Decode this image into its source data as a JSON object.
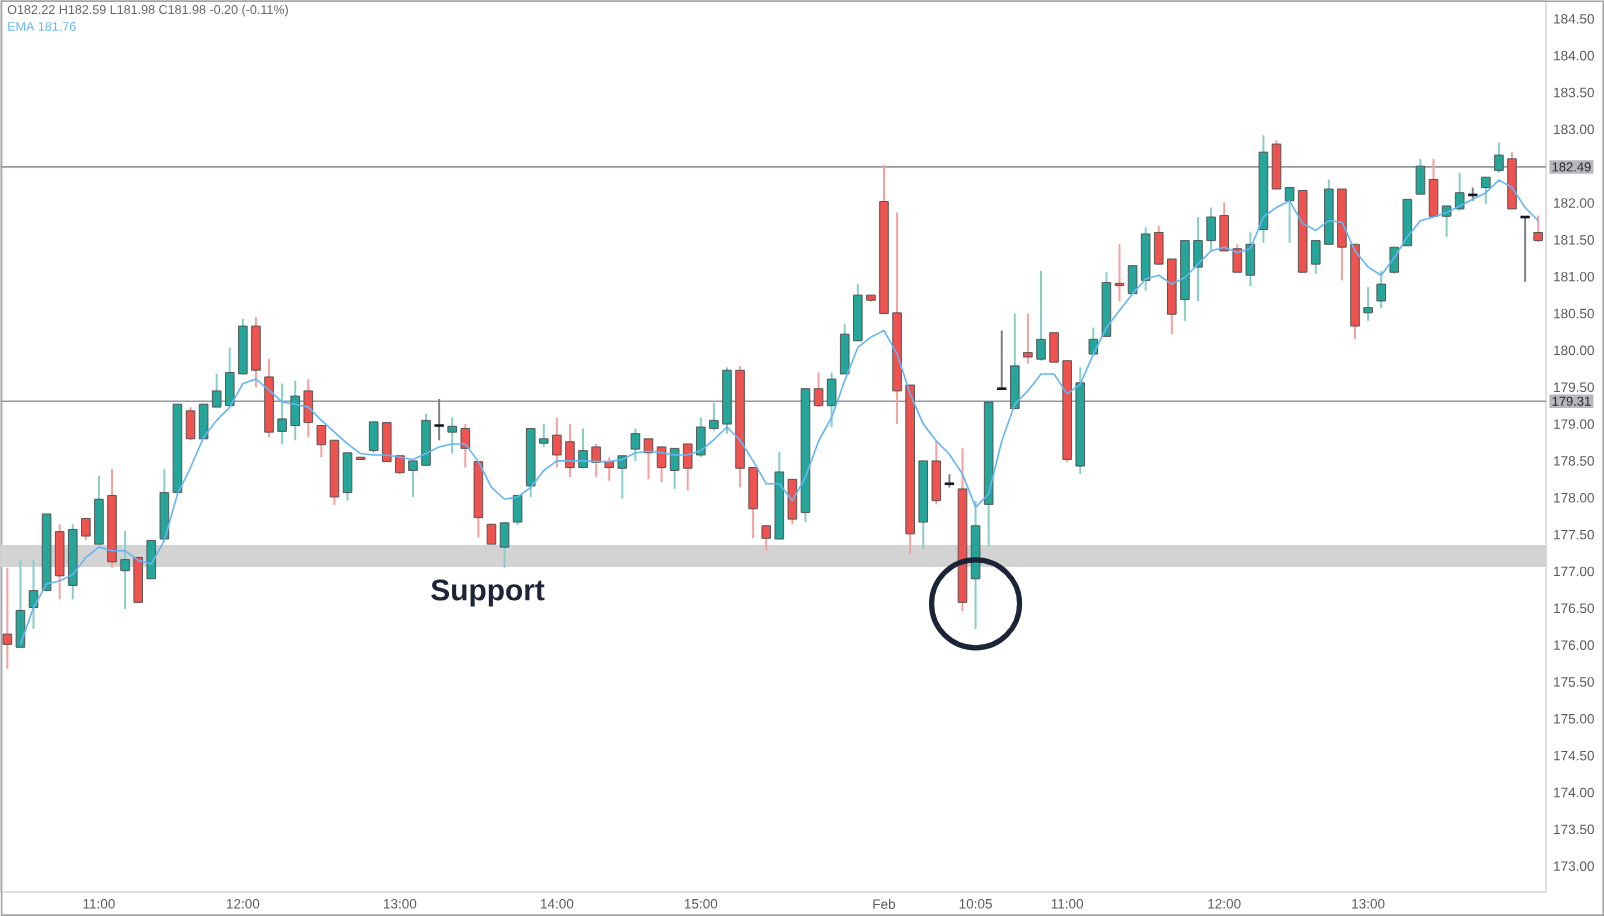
{
  "chart_data": {
    "type": "candlestick",
    "annotations": [
      "O182.22 H182.59 L181.98 C181.98 -0.20 (-0.11%)",
      "181.76"
    ],
    "legend": "top left",
    "colors": [
      "#ef5350",
      "#26a69a",
      "#26a69a",
      "#26a69a",
      "#ef5350",
      "#26a69a",
      "#ef5350",
      "#26a69a",
      "#ef5350",
      "#26a69a",
      "#ef5350",
      "#26a69a",
      "#26a69a",
      "#26a69a",
      "#ef5350",
      "#26a69a",
      "#26a69a",
      "#26a69a",
      "#26a69a",
      "#ef5350",
      "#ef5350",
      "#26a69a",
      "#26a69a",
      "#ef5350",
      "#ef5350",
      "#ef5350",
      "#26a69a",
      "#ef5350",
      "#26a69a",
      "#ef5350",
      "#ef5350",
      "#26a69a",
      "#26a69a",
      "#131722",
      "#26a69a",
      "#ef5350",
      "#ef5350",
      "#ef5350",
      "#26a69a",
      "#26a69a",
      "#26a69a",
      "#26a69a",
      "#ef5350",
      "#ef5350",
      "#26a69a",
      "#ef5350",
      "#ef5350",
      "#26a69a",
      "#26a69a",
      "#ef5350",
      "#ef5350",
      "#26a69a",
      "#ef5350",
      "#26a69a",
      "#26a69a",
      "#26a69a",
      "#ef5350",
      "#ef5350",
      "#ef5350",
      "#26a69a",
      "#ef5350",
      "#26a69a",
      "#ef5350",
      "#26a69a",
      "#26a69a",
      "#26a69a",
      "#ef5350",
      "#ef5350",
      "#ef5350",
      "#ef5350",
      "#26a69a",
      "#ef5350",
      "#131722",
      "#ef5350",
      "#26a69a",
      "#26a69a",
      "#131722",
      "#26a69a",
      "#ef5350",
      "#26a69a",
      "#ef5350",
      "#ef5350",
      "#26a69a",
      "#26a69a",
      "#26a69a",
      "#ef5350",
      "#26a69a",
      "#26a69a",
      "#ef5350",
      "#ef5350",
      "#26a69a",
      "#26a69a",
      "#26a69a",
      "#ef5350",
      "#ef5350",
      "#26a69a",
      "#26a69a",
      "#ef5350",
      "#26a69a",
      "#ef5350",
      "#26a69a",
      "#26a69a",
      "#ef5350",
      "#ef5350",
      "#26a69a",
      "#26a69a",
      "#26a69a",
      "#26a69a",
      "#26a69a",
      "#ef5350",
      "#26a69a",
      "#26a69a",
      "#131722",
      "#26a69a",
      "#26a69a",
      "#ef5350",
      "#131722",
      "#ef5350"
    ],
    "categories": [
      null,
      null,
      null,
      null,
      null,
      null,
      null,
      "11:00",
      null,
      null,
      null,
      null,
      null,
      null,
      null,
      null,
      null,
      null,
      "12:00",
      null,
      null,
      null,
      null,
      null,
      null,
      null,
      null,
      null,
      null,
      null,
      "13:00",
      null,
      null,
      null,
      null,
      null,
      null,
      null,
      null,
      null,
      null,
      null,
      "14:00",
      null,
      null,
      null,
      null,
      null,
      null,
      null,
      null,
      null,
      null,
      "15:00",
      null,
      null,
      null,
      null,
      null,
      null,
      null,
      null,
      null,
      null,
      null,
      null,
      null,
      "Feb",
      null,
      null,
      null,
      null,
      null,
      null,
      "10:05",
      null,
      null,
      null,
      null,
      null,
      null,
      "11:00",
      null,
      null,
      null,
      null,
      null,
      null,
      null,
      null,
      null,
      null,
      null,
      "12:00",
      null,
      null,
      null,
      null,
      null,
      null,
      null,
      null,
      null,
      null,
      "13:00",
      null,
      null,
      null,
      null,
      null,
      null,
      null,
      null,
      null,
      null,
      null,
      null,
      null
    ],
    "ohlc": [
      [
        176.15,
        177.05,
        175.68,
        176.01
      ],
      [
        175.97,
        177.15,
        175.97,
        176.47
      ],
      [
        176.51,
        177.15,
        176.22,
        176.74
      ],
      [
        176.74,
        177.78,
        176.74,
        177.78
      ],
      [
        177.54,
        177.64,
        176.62,
        176.94
      ],
      [
        176.81,
        177.64,
        176.62,
        177.57
      ],
      [
        177.72,
        177.72,
        177.42,
        177.48
      ],
      [
        177.37,
        178.3,
        177.37,
        177.98
      ],
      [
        178.03,
        178.39,
        177.05,
        177.13
      ],
      [
        177.01,
        177.55,
        176.49,
        177.16
      ],
      [
        177.19,
        177.19,
        176.58,
        176.58
      ],
      [
        176.9,
        177.42,
        176.9,
        177.42
      ],
      [
        177.44,
        178.39,
        177.42,
        178.07
      ],
      [
        178.07,
        179.27,
        178.07,
        179.27
      ],
      [
        179.18,
        179.23,
        178.78,
        178.8
      ],
      [
        178.8,
        179.27,
        178.8,
        179.27
      ],
      [
        179.23,
        179.68,
        179.23,
        179.45
      ],
      [
        179.25,
        180.04,
        179.25,
        179.7
      ],
      [
        179.68,
        180.43,
        179.68,
        180.33
      ],
      [
        180.33,
        180.45,
        179.5,
        179.73
      ],
      [
        179.64,
        179.88,
        178.82,
        178.89
      ],
      [
        178.9,
        179.55,
        178.73,
        179.07
      ],
      [
        178.98,
        179.59,
        178.78,
        179.38
      ],
      [
        179.45,
        179.61,
        178.82,
        179.02
      ],
      [
        178.98,
        178.98,
        178.55,
        178.72
      ],
      [
        178.78,
        178.78,
        177.9,
        178.01
      ],
      [
        178.07,
        178.61,
        177.96,
        178.61
      ],
      [
        178.55,
        178.55,
        178.52,
        178.52
      ],
      [
        178.64,
        179.03,
        178.61,
        179.03
      ],
      [
        179.02,
        179.02,
        178.49,
        178.49
      ],
      [
        178.57,
        178.57,
        178.32,
        178.34
      ],
      [
        178.37,
        178.5,
        178.01,
        178.5
      ],
      [
        178.44,
        179.14,
        178.44,
        179.05
      ],
      [
        178.98,
        179.34,
        178.78,
        178.98
      ],
      [
        178.89,
        179.09,
        178.6,
        178.97
      ],
      [
        178.94,
        179.0,
        178.41,
        178.67
      ],
      [
        178.49,
        178.49,
        177.46,
        177.73
      ],
      [
        177.64,
        177.64,
        177.37,
        177.37
      ],
      [
        177.33,
        177.66,
        177.05,
        177.66
      ],
      [
        177.67,
        178.03,
        177.63,
        178.03
      ],
      [
        178.16,
        178.94,
        178.01,
        178.94
      ],
      [
        178.74,
        179.0,
        178.69,
        178.8
      ],
      [
        178.85,
        179.09,
        178.41,
        178.58
      ],
      [
        178.76,
        179.0,
        178.28,
        178.41
      ],
      [
        178.41,
        178.94,
        178.4,
        178.64
      ],
      [
        178.69,
        178.73,
        178.28,
        178.48
      ],
      [
        178.49,
        178.55,
        178.23,
        178.41
      ],
      [
        178.4,
        178.57,
        177.99,
        178.57
      ],
      [
        178.66,
        178.94,
        178.5,
        178.87
      ],
      [
        178.8,
        178.8,
        178.25,
        178.61
      ],
      [
        178.69,
        178.69,
        178.21,
        178.41
      ],
      [
        178.37,
        178.67,
        178.12,
        178.67
      ],
      [
        178.73,
        178.73,
        178.1,
        178.4
      ],
      [
        178.58,
        179.09,
        178.55,
        178.96
      ],
      [
        178.94,
        179.29,
        178.91,
        179.05
      ],
      [
        179.0,
        179.77,
        178.87,
        179.73
      ],
      [
        179.73,
        179.79,
        178.14,
        178.4
      ],
      [
        178.41,
        178.41,
        177.45,
        177.85
      ],
      [
        177.62,
        177.62,
        177.28,
        177.45
      ],
      [
        177.44,
        178.62,
        177.44,
        178.35
      ],
      [
        178.25,
        178.25,
        177.64,
        177.71
      ],
      [
        177.8,
        179.48,
        177.67,
        179.48
      ],
      [
        179.48,
        179.7,
        179.23,
        179.25
      ],
      [
        179.25,
        179.7,
        178.96,
        179.61
      ],
      [
        179.68,
        180.36,
        179.68,
        180.22
      ],
      [
        180.13,
        180.9,
        180.13,
        180.75
      ],
      [
        180.75,
        180.75,
        180.66,
        180.68
      ],
      [
        182.02,
        182.52,
        180.5,
        180.5
      ],
      [
        180.51,
        181.87,
        179.0,
        179.45
      ],
      [
        179.53,
        179.53,
        177.23,
        177.51
      ],
      [
        177.67,
        178.5,
        177.31,
        178.5
      ],
      [
        178.5,
        178.77,
        177.91,
        177.96
      ],
      [
        178.19,
        178.32,
        178.14,
        178.19
      ],
      [
        178.12,
        178.67,
        176.46,
        176.58
      ],
      [
        176.9,
        177.96,
        176.22,
        177.62
      ],
      [
        177.91,
        179.3,
        177.33,
        179.3
      ],
      [
        179.48,
        180.27,
        179.48,
        179.48
      ],
      [
        179.21,
        180.5,
        179.21,
        179.79
      ],
      [
        179.97,
        180.5,
        179.82,
        179.91
      ],
      [
        179.88,
        181.08,
        179.86,
        180.15
      ],
      [
        180.24,
        180.24,
        179.84,
        179.84
      ],
      [
        179.86,
        179.86,
        178.48,
        178.52
      ],
      [
        178.43,
        179.77,
        178.32,
        179.56
      ],
      [
        179.95,
        180.31,
        179.95,
        180.15
      ],
      [
        180.19,
        181.06,
        180.19,
        180.92
      ],
      [
        180.91,
        181.44,
        180.67,
        180.88
      ],
      [
        180.77,
        181.15,
        180.77,
        181.15
      ],
      [
        180.95,
        181.67,
        180.81,
        181.58
      ],
      [
        181.6,
        181.69,
        181.17,
        181.17
      ],
      [
        181.24,
        181.24,
        180.22,
        180.49
      ],
      [
        180.69,
        181.49,
        180.4,
        181.49
      ],
      [
        181.13,
        181.81,
        180.67,
        181.49
      ],
      [
        181.49,
        181.94,
        181.35,
        181.81
      ],
      [
        181.83,
        182.01,
        181.35,
        181.35
      ],
      [
        181.38,
        181.44,
        181.06,
        181.06
      ],
      [
        181.02,
        181.6,
        180.87,
        181.44
      ],
      [
        181.64,
        182.92,
        181.46,
        182.69
      ],
      [
        182.8,
        182.85,
        182.19,
        182.19
      ],
      [
        182.03,
        182.21,
        181.46,
        182.21
      ],
      [
        182.17,
        182.17,
        181.06,
        181.06
      ],
      [
        181.17,
        181.49,
        181.04,
        181.49
      ],
      [
        181.44,
        182.32,
        181.44,
        182.19
      ],
      [
        182.19,
        182.19,
        180.95,
        181.4
      ],
      [
        181.44,
        181.44,
        180.15,
        180.33
      ],
      [
        180.51,
        180.86,
        180.4,
        180.58
      ],
      [
        180.67,
        181.08,
        180.57,
        180.9
      ],
      [
        181.06,
        181.4,
        181.04,
        181.4
      ],
      [
        181.42,
        182.05,
        181.42,
        182.05
      ],
      [
        182.12,
        182.6,
        182.12,
        182.5
      ],
      [
        182.32,
        182.6,
        181.82,
        181.82
      ],
      [
        181.82,
        181.96,
        181.54,
        181.96
      ],
      [
        181.92,
        182.41,
        181.9,
        182.14
      ],
      [
        182.11,
        182.21,
        182.03,
        182.11
      ],
      [
        182.21,
        182.35,
        181.99,
        182.35
      ],
      [
        182.44,
        182.82,
        182.41,
        182.65
      ],
      [
        182.6,
        182.69,
        181.92,
        181.92
      ],
      [
        181.81,
        181.81,
        180.93,
        181.81
      ],
      [
        181.6,
        181.83,
        181.47,
        181.49
      ]
    ],
    "series": [
      {
        "type": "line",
        "name": "EMA",
        "color": "#64b5f6",
        "values": [
          null,
          176.01,
          176.51,
          176.83,
          176.87,
          176.96,
          177.19,
          177.33,
          177.28,
          177.28,
          177.15,
          177.1,
          177.42,
          178.05,
          178.41,
          178.82,
          179.05,
          179.23,
          179.55,
          179.61,
          179.46,
          179.3,
          179.27,
          179.23,
          179.05,
          178.89,
          178.73,
          178.6,
          178.58,
          178.58,
          178.55,
          178.52,
          178.6,
          178.69,
          178.73,
          178.73,
          178.49,
          178.14,
          177.98,
          178.01,
          178.14,
          178.37,
          178.5,
          178.5,
          178.5,
          178.49,
          178.49,
          178.52,
          178.61,
          178.63,
          178.61,
          178.58,
          178.58,
          178.64,
          178.79,
          178.96,
          178.78,
          178.5,
          178.19,
          178.19,
          177.96,
          178.28,
          178.77,
          179.09,
          179.59,
          180.04,
          180.18,
          180.27,
          179.95,
          179.41,
          179.0,
          178.77,
          178.59,
          178.32,
          177.87,
          178.05,
          178.77,
          179.27,
          179.45,
          179.68,
          179.68,
          179.41,
          179.54,
          179.95,
          180.31,
          180.54,
          180.77,
          180.97,
          181.02,
          180.9,
          180.99,
          181.17,
          181.35,
          181.4,
          181.33,
          181.38,
          181.81,
          181.94,
          182.03,
          181.72,
          181.63,
          181.76,
          181.74,
          181.35,
          181.13,
          181.02,
          181.26,
          181.54,
          181.76,
          181.81,
          181.87,
          181.96,
          182.05,
          182.14,
          182.31,
          182.21,
          181.94,
          181.76
        ]
      }
    ],
    "ylim": [
      172.65,
      184.75
    ],
    "yticks": [
      {
        "value": 173.0,
        "label": "173.00"
      },
      {
        "value": 173.5,
        "label": "173.50"
      },
      {
        "value": 174.0,
        "label": "174.00"
      },
      {
        "value": 174.5,
        "label": "174.50"
      },
      {
        "value": 175.0,
        "label": "175.00"
      },
      {
        "value": 175.5,
        "label": "175.50"
      },
      {
        "value": 176.0,
        "label": "176.00"
      },
      {
        "value": 176.5,
        "label": "176.50"
      },
      {
        "value": 177.0,
        "label": "177.00"
      },
      {
        "value": 177.5,
        "label": "177.50"
      },
      {
        "value": 178.0,
        "label": "178.00"
      },
      {
        "value": 178.5,
        "label": "178.50"
      },
      {
        "value": 179.0,
        "label": "179.00"
      },
      {
        "value": 179.5,
        "label": "179.50"
      },
      {
        "value": 180.0,
        "label": "180.00"
      },
      {
        "value": 180.5,
        "label": "180.50"
      },
      {
        "value": 181.0,
        "label": "181.00"
      },
      {
        "value": 181.5,
        "label": "181.50"
      },
      {
        "value": 182.0,
        "label": "182.00"
      },
      {
        "value": 183.0,
        "label": "183.00"
      },
      {
        "value": 183.5,
        "label": "183.50"
      },
      {
        "value": 184.0,
        "label": "184.00"
      },
      {
        "value": 184.5,
        "label": "184.50"
      }
    ],
    "ref_lines": [
      {
        "axis": "y",
        "value": 182.49,
        "label": "182.49",
        "color": "#9598a1"
      },
      {
        "axis": "y",
        "value": 179.31,
        "label": "179.31",
        "color": "#9598a1"
      }
    ],
    "bands": [
      {
        "axis": "y",
        "from": 177.06,
        "to": 177.36,
        "label": "Support",
        "color": "#d3d3d3"
      }
    ]
  }
}
